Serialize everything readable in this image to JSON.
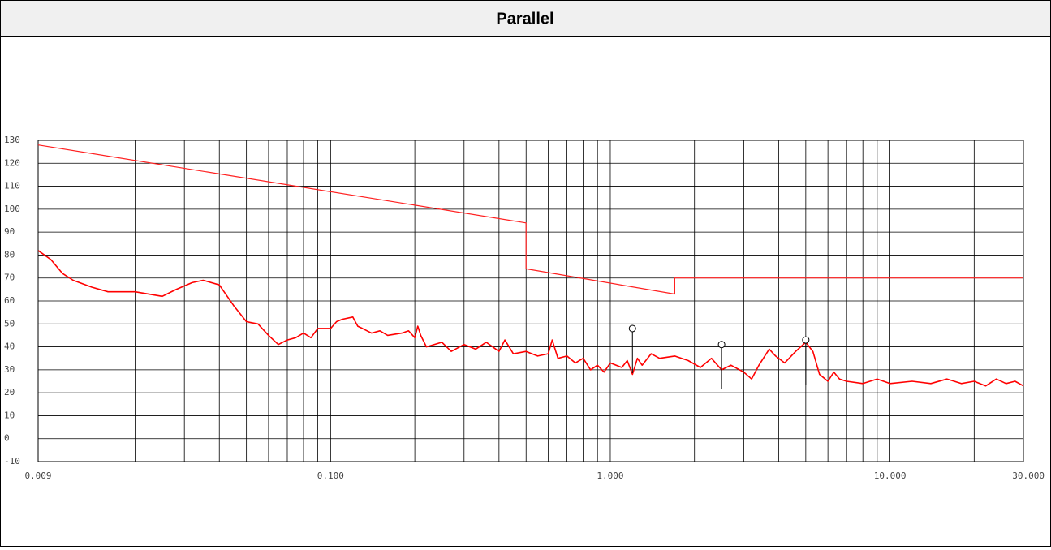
{
  "chart_data": {
    "type": "line",
    "title": "Parallel",
    "xscale": "log",
    "xlim": [
      0.009,
      30
    ],
    "ylim": [
      -10,
      130
    ],
    "xticks": [
      0.009,
      {
        "value": 0.1,
        "label": "0.100"
      },
      {
        "value": 1,
        "label": "1.000"
      },
      {
        "value": 10,
        "label": "10.000"
      },
      {
        "value": 30,
        "label": "30.000"
      }
    ],
    "xgrid": [
      0.02,
      0.03,
      0.04,
      0.05,
      0.06,
      0.07,
      0.08,
      0.09,
      0.1,
      0.2,
      0.3,
      0.4,
      0.5,
      0.6,
      0.7,
      0.8,
      0.9,
      1,
      2,
      3,
      4,
      5,
      6,
      7,
      8,
      9,
      10,
      20
    ],
    "yticks": [
      -10,
      0,
      10,
      20,
      30,
      40,
      50,
      60,
      70,
      80,
      90,
      100,
      110,
      120,
      130
    ],
    "grid": true,
    "series": [
      {
        "color": "#ff2020",
        "width": 1.2,
        "x": [
          0.009,
          0.5,
          0.5,
          1.7,
          1.7,
          30
        ],
        "values": [
          128,
          94,
          74,
          63,
          70,
          70
        ]
      },
      {
        "color": "#ff0000",
        "width": 1.6,
        "x": [
          0.009,
          0.01,
          0.011,
          0.012,
          0.014,
          0.016,
          0.02,
          0.025,
          0.028,
          0.032,
          0.035,
          0.04,
          0.045,
          0.05,
          0.055,
          0.06,
          0.065,
          0.07,
          0.075,
          0.08,
          0.085,
          0.09,
          0.1,
          0.105,
          0.11,
          0.12,
          0.125,
          0.13,
          0.14,
          0.15,
          0.16,
          0.18,
          0.19,
          0.2,
          0.205,
          0.21,
          0.22,
          0.25,
          0.27,
          0.3,
          0.33,
          0.36,
          0.4,
          0.42,
          0.45,
          0.5,
          0.55,
          0.6,
          0.62,
          0.65,
          0.7,
          0.75,
          0.8,
          0.85,
          0.9,
          0.95,
          1.0,
          1.1,
          1.15,
          1.2,
          1.25,
          1.3,
          1.4,
          1.5,
          1.7,
          1.9,
          2.1,
          2.3,
          2.5,
          2.7,
          3.0,
          3.2,
          3.4,
          3.7,
          3.9,
          4.2,
          4.6,
          5.0,
          5.3,
          5.6,
          6.0,
          6.3,
          6.6,
          7,
          8,
          9,
          10,
          12,
          14,
          16,
          18,
          20,
          22,
          24,
          26,
          28,
          30
        ],
        "values": [
          82,
          78,
          72,
          69,
          66,
          64,
          64,
          62,
          65,
          68,
          69,
          67,
          58,
          51,
          50,
          45,
          41,
          43,
          44,
          46,
          44,
          48,
          48,
          51,
          52,
          53,
          49,
          48,
          46,
          47,
          45,
          46,
          47,
          44,
          49,
          45,
          40,
          42,
          38,
          41,
          39,
          42,
          38,
          43,
          37,
          38,
          36,
          37,
          43,
          35,
          36,
          33,
          35,
          30,
          32,
          29,
          33,
          31,
          34,
          28,
          35,
          32,
          37,
          35,
          36,
          34,
          31,
          35,
          30,
          32,
          29,
          26,
          32,
          39,
          36,
          33,
          38,
          42,
          38,
          28,
          25,
          29,
          26,
          25,
          24,
          26,
          24,
          25,
          24,
          26,
          24,
          25,
          23,
          26,
          24,
          25,
          23
        ]
      }
    ],
    "markers": {
      "x": [
        1.2,
        2.5,
        5.0
      ],
      "values": [
        48,
        41,
        43
      ]
    }
  }
}
